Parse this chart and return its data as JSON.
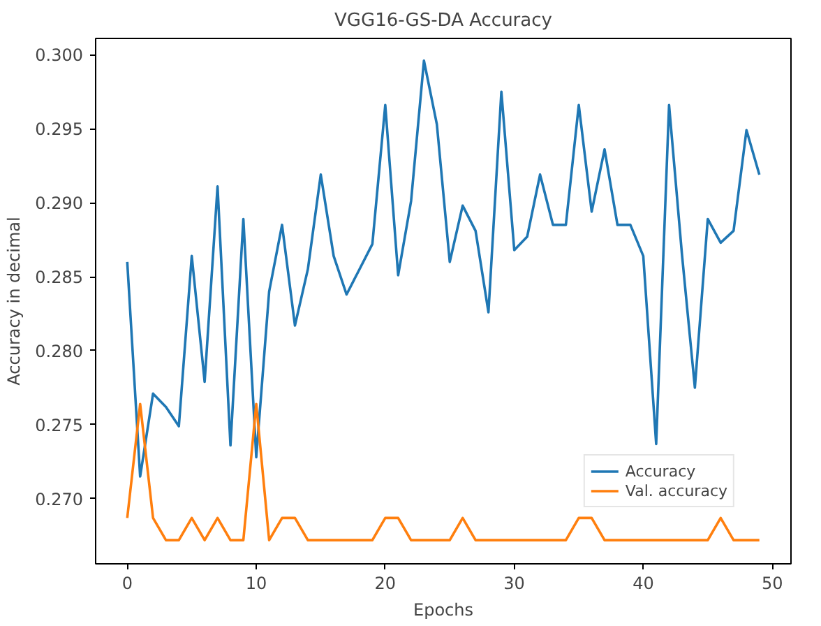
{
  "chart_data": {
    "type": "line",
    "title": "VGG16-GS-DA Accuracy",
    "xlabel": "Epochs",
    "ylabel": "Accuracy in decimal",
    "x": [
      0,
      1,
      2,
      3,
      4,
      5,
      6,
      7,
      8,
      9,
      10,
      11,
      12,
      13,
      14,
      15,
      16,
      17,
      18,
      19,
      20,
      21,
      22,
      23,
      24,
      25,
      26,
      27,
      28,
      29,
      30,
      31,
      32,
      33,
      34,
      35,
      36,
      37,
      38,
      39,
      40,
      41,
      42,
      43,
      44,
      45,
      46,
      47,
      48,
      49
    ],
    "series": [
      {
        "name": "Accuracy",
        "color": "#1f77b4",
        "values": [
          0.286,
          0.2715,
          0.2771,
          0.2762,
          0.2749,
          0.2864,
          0.2779,
          0.2911,
          0.2736,
          0.2889,
          0.2728,
          0.284,
          0.2885,
          0.2817,
          0.2855,
          0.2919,
          0.2864,
          0.2838,
          0.2855,
          0.2872,
          0.2966,
          0.2851,
          0.2901,
          0.2996,
          0.2953,
          0.286,
          0.2898,
          0.2881,
          0.2826,
          0.2975,
          0.2868,
          0.2877,
          0.2919,
          0.2885,
          0.2885,
          0.2966,
          0.2894,
          0.2936,
          0.2885,
          0.2885,
          0.2864,
          0.2737,
          0.2966,
          0.2865,
          0.2775,
          0.2889,
          0.2873,
          0.2881,
          0.2949,
          0.2919
        ]
      },
      {
        "name": "Val. accuracy",
        "color": "#ff7f0e",
        "values": [
          0.2687,
          0.2764,
          0.2687,
          0.2672,
          0.2672,
          0.2687,
          0.2672,
          0.2687,
          0.2672,
          0.2672,
          0.2764,
          0.2672,
          0.2687,
          0.2687,
          0.2672,
          0.2672,
          0.2672,
          0.2672,
          0.2672,
          0.2672,
          0.2687,
          0.2687,
          0.2672,
          0.2672,
          0.2672,
          0.2672,
          0.2687,
          0.2672,
          0.2672,
          0.2672,
          0.2672,
          0.2672,
          0.2672,
          0.2672,
          0.2672,
          0.2687,
          0.2687,
          0.2672,
          0.2672,
          0.2672,
          0.2672,
          0.2672,
          0.2672,
          0.2672,
          0.2672,
          0.2672,
          0.2687,
          0.2672,
          0.2672,
          0.2672
        ]
      }
    ],
    "xlim": [
      -2.45,
      51.45
    ],
    "ylim": [
      0.2656,
      0.3011
    ],
    "xticks": [
      0,
      10,
      20,
      30,
      40,
      50
    ],
    "yticks": [
      {
        "value": 0.27,
        "label": "0.270"
      },
      {
        "value": 0.275,
        "label": "0.275"
      },
      {
        "value": 0.28,
        "label": "0.280"
      },
      {
        "value": 0.285,
        "label": "0.285"
      },
      {
        "value": 0.29,
        "label": "0.290"
      },
      {
        "value": 0.295,
        "label": "0.295"
      },
      {
        "value": 0.3,
        "label": "0.300"
      }
    ],
    "grid": false,
    "legend": "bottom right",
    "line_style": "solid"
  }
}
